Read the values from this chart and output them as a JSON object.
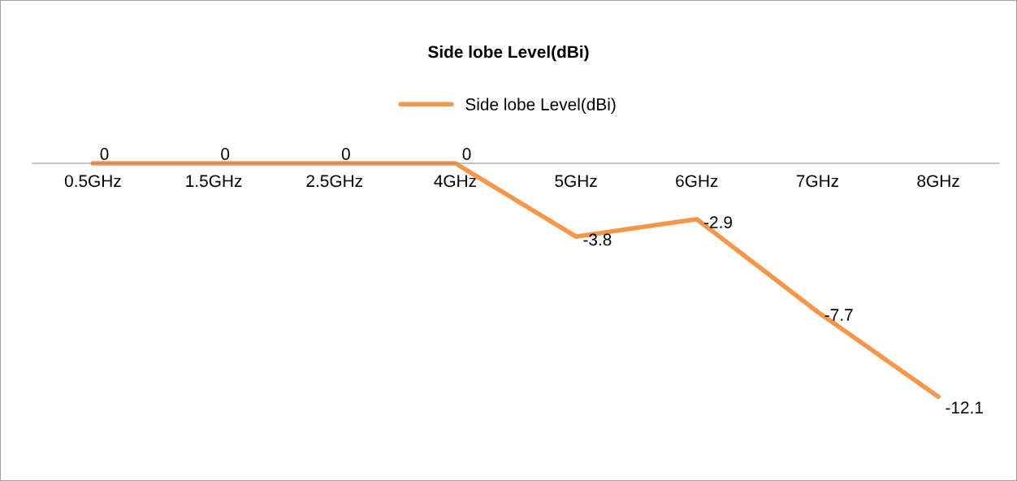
{
  "chart_data": {
    "type": "line",
    "title": "Side lobe Level(dBi)",
    "categories": [
      "0.5GHz",
      "1.5GHz",
      "2.5GHz",
      "4GHz",
      "5GHz",
      "6GHz",
      "7GHz",
      "8GHz"
    ],
    "series": [
      {
        "name": "Side lobe Level(dBi)",
        "color": "#f79646",
        "values": [
          0,
          0,
          0,
          0,
          -3.8,
          -2.9,
          -7.7,
          -12.1
        ]
      }
    ],
    "data_labels": true,
    "legend": "top",
    "grid": false,
    "marker": "none",
    "line_style": "solid",
    "tick_labels": "x"
  }
}
